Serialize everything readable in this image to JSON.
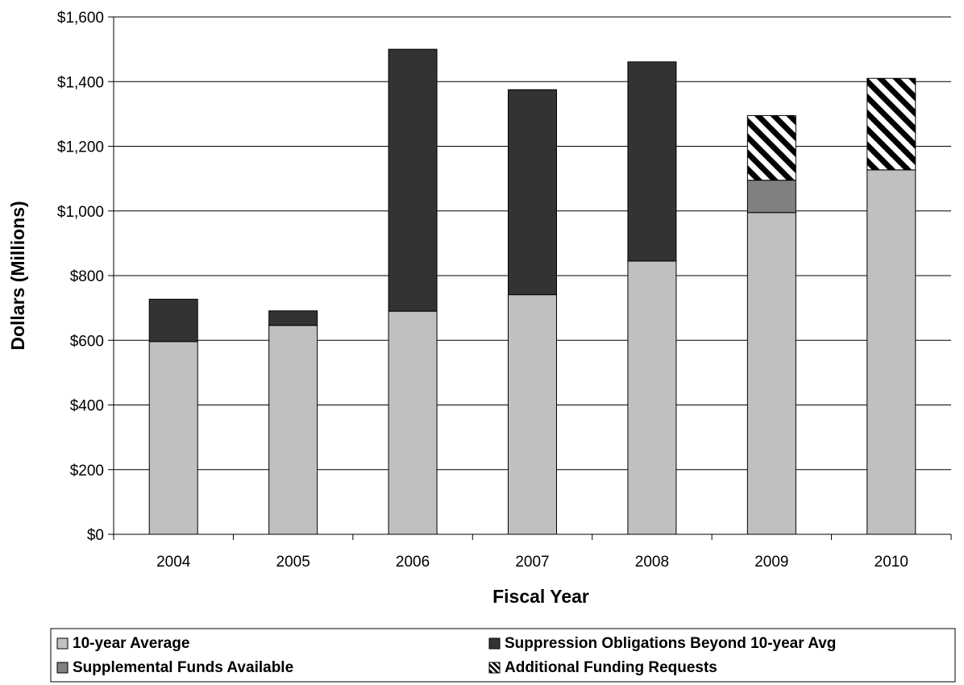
{
  "chart_data": {
    "type": "bar",
    "stacked": true,
    "title": "",
    "xlabel": "Fiscal Year",
    "ylabel": "Dollars (Millions)",
    "ylim": [
      0,
      1600
    ],
    "ytick_step": 200,
    "ytick_labels": [
      "$0",
      "$200",
      "$400",
      "$600",
      "$800",
      "$1,000",
      "$1,200",
      "$1,400",
      "$1,600"
    ],
    "categories": [
      "2004",
      "2005",
      "2006",
      "2007",
      "2008",
      "2009",
      "2010"
    ],
    "series": [
      {
        "name": "10-year Average",
        "values": [
          596,
          646,
          690,
          741,
          845,
          995,
          1127
        ],
        "color": "#c0c0c0",
        "pattern": "solid"
      },
      {
        "name": "Suppression Obligations Beyond 10-year Avg",
        "values": [
          131,
          45,
          810,
          634,
          616,
          0,
          0
        ],
        "color": "#333333",
        "pattern": "solid"
      },
      {
        "name": "Supplemental Funds Available",
        "values": [
          0,
          0,
          0,
          0,
          0,
          100,
          0
        ],
        "color": "#808080",
        "pattern": "solid"
      },
      {
        "name": "Additional Funding Requests",
        "values": [
          0,
          0,
          0,
          0,
          0,
          200,
          283
        ],
        "color": "#000000",
        "pattern": "diagonal-stripes"
      }
    ],
    "legend_position": "bottom",
    "grid": true
  }
}
